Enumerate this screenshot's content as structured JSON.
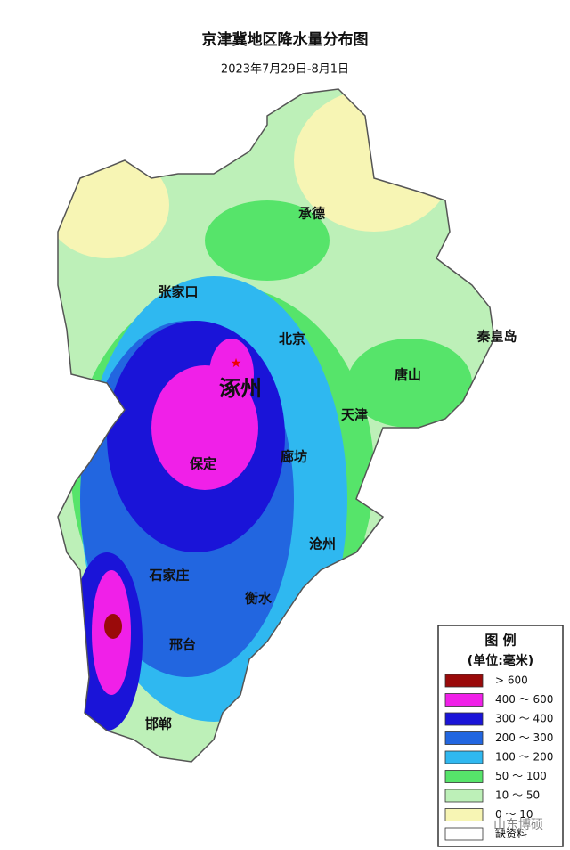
{
  "header": {
    "title": "京津冀地区降水量分布图",
    "subtitle": "2023年7月29日-8月1日"
  },
  "map": {
    "labels": [
      "承德",
      "张家口",
      "北京",
      "秦皇岛",
      "唐山",
      "涿州",
      "天津",
      "廊坊",
      "保定",
      "沧州",
      "石家庄",
      "衡水",
      "邢台",
      "邯郸"
    ]
  },
  "legend": {
    "title": "图 例",
    "unit": "(单位:毫米)",
    "items": [
      {
        "label": "> 600",
        "color": "#9a0a0a"
      },
      {
        "label": "400 ～ 600",
        "color": "#f020e8"
      },
      {
        "label": "300 ～ 400",
        "color": "#1a14d8"
      },
      {
        "label": "200 ～ 300",
        "color": "#2266e0"
      },
      {
        "label": "100 ～ 200",
        "color": "#2fb8f0"
      },
      {
        "label": "50 ～ 100",
        "color": "#56e46a"
      },
      {
        "label": "10 ～ 50",
        "color": "#bdf0b8"
      },
      {
        "label": "0 ～ 10",
        "color": "#f7f5b4"
      },
      {
        "label": "缺资料",
        "color": "#ffffff"
      }
    ]
  },
  "watermark": "山东博硕"
}
